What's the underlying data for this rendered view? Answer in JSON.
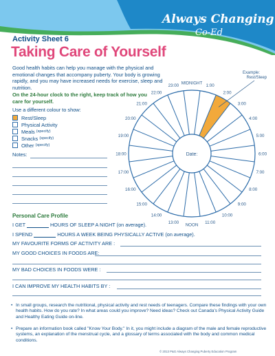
{
  "brand": {
    "line1": "Always Changing",
    "line2": "Co-Ed"
  },
  "sheet_label": "Activity Sheet 6",
  "title": "Taking Care of Yourself",
  "intro": "Good health habits can help you manage with the physical and emotional changes that accompany puberty. Your body is growing rapidly, and you may have increased needs for exercise, sleep and nutrition.",
  "instruction": "On the 24-hour clock to the right, keep track of how you care for yourself.",
  "use_colour": "Use a different colour to show:",
  "legend": [
    {
      "label": "Rest/Sleep",
      "note": "",
      "color": "#f2a93b"
    },
    {
      "label": "Physical Activity",
      "note": "",
      "color": ""
    },
    {
      "label": "Meals",
      "note": "(specify)",
      "color": ""
    },
    {
      "label": "Snacks",
      "note": "(specify)",
      "color": ""
    },
    {
      "label": "Other",
      "note": "(specify)",
      "color": ""
    }
  ],
  "notes_label": "Notes:",
  "clock": {
    "example_label_1": "Example:",
    "example_label_2": "Rest/Sleep",
    "date_label": "Date:",
    "hours": [
      "MIDNIGHT",
      "1:00",
      "2:00",
      "3:00",
      "4:00",
      "5:00",
      "6:00",
      "7:00",
      "8:00",
      "9:00",
      "10:00",
      "11:00",
      "NOON",
      "13:00",
      "14:00",
      "15:00",
      "16:00",
      "17:00",
      "18:00",
      "19:00",
      "20:00",
      "21:00",
      "22:00",
      "23:00"
    ],
    "filled_segments": [
      2
    ]
  },
  "profile": {
    "heading": "Personal Care Profile",
    "line1_a": "I GET",
    "line1_b": "HOURS OF SLEEP A NIGHT (on average).",
    "line2_a": "I SPEND",
    "line2_b": "HOURS A WEEK BEING PHYSICALLY ACTIVE (on average).",
    "line3": "MY FAVOURITE FORMS OF ACTIVITY ARE :",
    "line4": "MY GOOD CHOICES IN FOODS ARE:",
    "line5": "MY BAD CHOICES IN FOODS WERE :",
    "line6": "I CAN IMPROVE MY HEALTH HABITS BY :"
  },
  "bullets": [
    "In small groups, research the nutritional, physical activity and rest needs of teenagers. Compare these findings with your own health habits. How do you rate? In what areas could you improve? Need ideas? Check out Canada's Physical Activity Guide and Healthy Eating Guide on-line.",
    "Prepare an information book called \"Know Your Body.\" In it, you might include a diagram of the male and female reproductive systems, an explanation of the menstrual cycle, and a glossary of terms associated with the body and common medical conditions."
  ],
  "footer": "© 2013 P&G Always Changing Puberty Education Program",
  "colors": {
    "accent_pink": "#e0477a",
    "green": "#2c7a3b",
    "blue": "#0d4d87",
    "orange": "#f2a93b"
  }
}
